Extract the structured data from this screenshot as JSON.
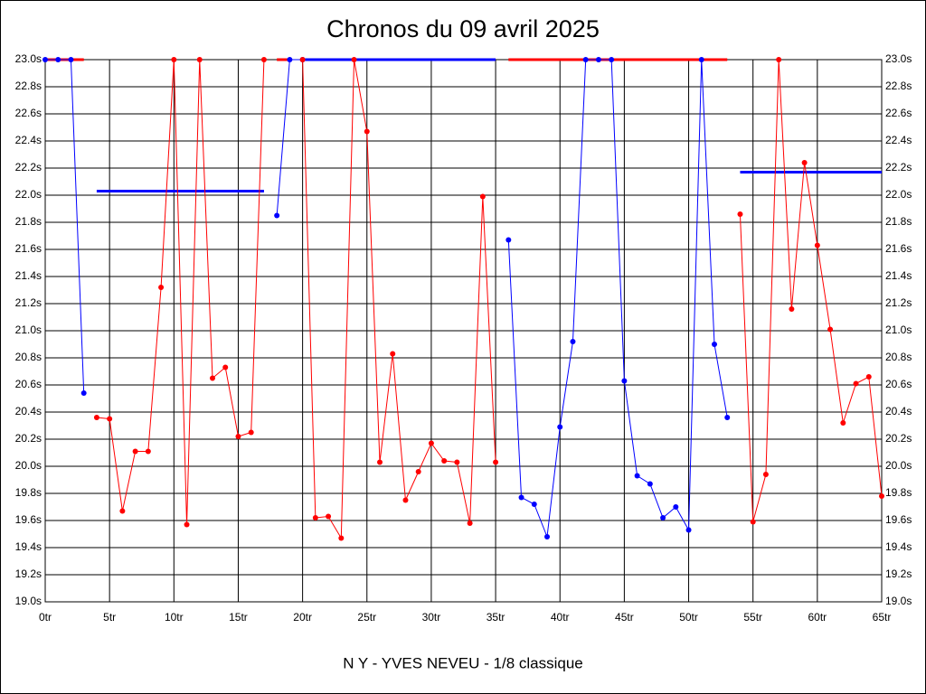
{
  "chart_data": {
    "type": "line",
    "title": "Chronos du 09 avril 2025",
    "x_label": "N Y - YVES NEVEU - 1/8 classique",
    "xlim": [
      0,
      65
    ],
    "xticks": [
      {
        "value": 0,
        "label": "0tr"
      },
      {
        "value": 5,
        "label": "5tr"
      },
      {
        "value": 10,
        "label": "10tr"
      },
      {
        "value": 15,
        "label": "15tr"
      },
      {
        "value": 20,
        "label": "20tr"
      },
      {
        "value": 25,
        "label": "25tr"
      },
      {
        "value": 30,
        "label": "30tr"
      },
      {
        "value": 35,
        "label": "35tr"
      },
      {
        "value": 40,
        "label": "40tr"
      },
      {
        "value": 45,
        "label": "45tr"
      },
      {
        "value": 50,
        "label": "50tr"
      },
      {
        "value": 55,
        "label": "55tr"
      },
      {
        "value": 60,
        "label": "60tr"
      },
      {
        "value": 65,
        "label": "65tr"
      }
    ],
    "ylim": [
      19.0,
      23.0
    ],
    "yticks": [
      {
        "value": 19.0,
        "label": "19.0s"
      },
      {
        "value": 19.2,
        "label": "19.2s"
      },
      {
        "value": 19.4,
        "label": "19.4s"
      },
      {
        "value": 19.6,
        "label": "19.6s"
      },
      {
        "value": 19.8,
        "label": "19.8s"
      },
      {
        "value": 20.0,
        "label": "20.0s"
      },
      {
        "value": 20.2,
        "label": "20.2s"
      },
      {
        "value": 20.4,
        "label": "20.4s"
      },
      {
        "value": 20.6,
        "label": "20.6s"
      },
      {
        "value": 20.8,
        "label": "20.8s"
      },
      {
        "value": 21.0,
        "label": "21.0s"
      },
      {
        "value": 21.2,
        "label": "21.2s"
      },
      {
        "value": 21.4,
        "label": "21.4s"
      },
      {
        "value": 21.6,
        "label": "21.6s"
      },
      {
        "value": 21.8,
        "label": "21.8s"
      },
      {
        "value": 22.0,
        "label": "22.0s"
      },
      {
        "value": 22.2,
        "label": "22.2s"
      },
      {
        "value": 22.4,
        "label": "22.4s"
      },
      {
        "value": 22.6,
        "label": "22.6s"
      },
      {
        "value": 22.8,
        "label": "22.8s"
      },
      {
        "value": 23.0,
        "label": "23.0s"
      }
    ],
    "grid": true,
    "x": [
      0,
      1,
      2,
      3,
      4,
      5,
      6,
      7,
      8,
      9,
      10,
      11,
      12,
      13,
      14,
      15,
      16,
      17,
      18,
      19,
      20,
      21,
      22,
      23,
      24,
      25,
      26,
      27,
      28,
      29,
      30,
      31,
      32,
      33,
      34,
      35,
      36,
      37,
      38,
      39,
      40,
      41,
      42,
      43,
      44,
      45,
      46,
      47,
      48,
      49,
      50,
      51,
      52,
      53,
      54,
      55,
      56,
      57,
      58,
      59,
      60,
      61,
      62,
      63,
      64,
      65
    ],
    "series": [
      {
        "color": "#0000ff",
        "values": [
          23.0,
          23.0,
          23.0,
          20.54,
          null,
          null,
          null,
          null,
          null,
          null,
          null,
          null,
          null,
          null,
          null,
          null,
          null,
          null,
          21.85,
          23.0,
          23.0,
          null,
          null,
          null,
          null,
          null,
          null,
          null,
          null,
          null,
          null,
          null,
          null,
          null,
          null,
          null,
          21.67,
          19.77,
          19.72,
          19.48,
          20.29,
          20.92,
          23.0,
          23.0,
          23.0,
          20.63,
          19.93,
          19.87,
          19.62,
          19.7,
          19.53,
          23.0,
          20.9,
          20.36,
          null,
          null,
          null,
          null,
          null,
          null,
          null,
          null,
          null,
          null,
          null,
          null
        ]
      },
      {
        "color": "#ff0000",
        "values": [
          null,
          null,
          null,
          null,
          20.36,
          20.35,
          19.67,
          20.11,
          20.11,
          21.32,
          23.0,
          19.57,
          23.0,
          20.65,
          20.73,
          20.22,
          20.25,
          23.0,
          null,
          null,
          23.0,
          19.62,
          19.63,
          19.47,
          23.0,
          22.47,
          20.03,
          20.83,
          19.75,
          19.96,
          20.17,
          20.04,
          20.03,
          19.58,
          21.99,
          20.03,
          null,
          null,
          null,
          null,
          null,
          null,
          null,
          null,
          null,
          null,
          null,
          null,
          null,
          null,
          null,
          null,
          null,
          null,
          21.86,
          19.59,
          19.94,
          23.0,
          21.16,
          22.24,
          21.63,
          21.01,
          20.32,
          20.61,
          20.66,
          19.78
        ]
      }
    ],
    "reference_lines": [
      {
        "color": "#ff0000",
        "x": [
          0,
          3
        ],
        "value": 23.0
      },
      {
        "color": "#0000ff",
        "x": [
          4,
          17
        ],
        "value": 22.03
      },
      {
        "color": "#ff0000",
        "x": [
          18,
          19
        ],
        "value": 23.0
      },
      {
        "color": "#0000ff",
        "x": [
          20,
          35
        ],
        "value": 23.0
      },
      {
        "color": "#ff0000",
        "x": [
          36,
          53
        ],
        "value": 23.0
      },
      {
        "color": "#0000ff",
        "x": [
          54,
          65
        ],
        "value": 22.17
      }
    ]
  }
}
